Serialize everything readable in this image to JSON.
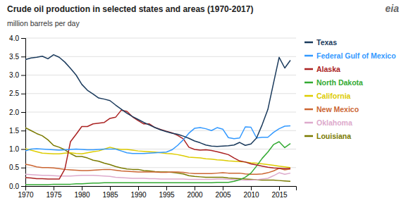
{
  "chart_data": {
    "type": "line",
    "title": "Crude oil production in selected states and areas (1970-2017)",
    "ylabel": "million barrels per day",
    "annotations": [
      {
        "text": "eia"
      }
    ],
    "grid": true,
    "legend": "right",
    "xlim": [
      1970,
      2018
    ],
    "ylim": [
      0,
      4.0
    ],
    "xticks": [
      1970,
      1975,
      1980,
      1985,
      1990,
      1995,
      2000,
      2005,
      2010,
      2015
    ],
    "yticks": [
      {
        "value": 0.0,
        "label": "0.0"
      },
      0.5,
      {
        "value": 1.0,
        "label": "1.0"
      },
      1.5,
      {
        "value": 2.0,
        "label": "2.0"
      },
      2.5,
      {
        "value": 3.0,
        "label": "3.0"
      },
      3.5,
      {
        "value": 4.0,
        "label": "4.0"
      }
    ],
    "x": [
      1970,
      1971,
      1972,
      1973,
      1974,
      1975,
      1976,
      1977,
      1978,
      1979,
      1980,
      1981,
      1982,
      1983,
      1984,
      1985,
      1986,
      1987,
      1988,
      1989,
      1990,
      1991,
      1992,
      1993,
      1994,
      1995,
      1996,
      1997,
      1998,
      1999,
      2000,
      2001,
      2002,
      2003,
      2004,
      2005,
      2006,
      2007,
      2008,
      2009,
      2010,
      2011,
      2012,
      2013,
      2014,
      2015,
      2016,
      2017
    ],
    "series": [
      {
        "name": "Louisiana",
        "color": "#7a7a00",
        "values": [
          1.58,
          1.5,
          1.42,
          1.36,
          1.25,
          1.1,
          1.05,
          0.98,
          0.88,
          0.8,
          0.8,
          0.76,
          0.7,
          0.67,
          0.62,
          0.58,
          0.53,
          0.49,
          0.46,
          0.45,
          0.45,
          0.42,
          0.41,
          0.39,
          0.38,
          0.38,
          0.37,
          0.35,
          0.33,
          0.28,
          0.26,
          0.25,
          0.24,
          0.24,
          0.24,
          0.24,
          0.22,
          0.21,
          0.2,
          0.19,
          0.18,
          0.17,
          0.16,
          0.16,
          0.16,
          0.15,
          0.14,
          0.13
        ]
      },
      {
        "name": "Oklahoma",
        "color": "#ddaacc",
        "values": [
          0.32,
          0.31,
          0.3,
          0.29,
          0.29,
          0.28,
          0.27,
          0.27,
          0.27,
          0.28,
          0.29,
          0.29,
          0.29,
          0.28,
          0.27,
          0.26,
          0.24,
          0.23,
          0.22,
          0.21,
          0.21,
          0.21,
          0.2,
          0.2,
          0.19,
          0.19,
          0.19,
          0.19,
          0.19,
          0.18,
          0.18,
          0.18,
          0.18,
          0.18,
          0.19,
          0.19,
          0.18,
          0.17,
          0.17,
          0.16,
          0.16,
          0.17,
          0.19,
          0.21,
          0.28,
          0.36,
          0.32,
          0.35
        ]
      },
      {
        "name": "New Mexico",
        "color": "#cc6633",
        "values": [
          0.59,
          0.56,
          0.52,
          0.5,
          0.5,
          0.49,
          0.47,
          0.45,
          0.44,
          0.43,
          0.42,
          0.42,
          0.43,
          0.44,
          0.45,
          0.45,
          0.43,
          0.41,
          0.4,
          0.39,
          0.38,
          0.38,
          0.38,
          0.38,
          0.37,
          0.37,
          0.38,
          0.38,
          0.37,
          0.35,
          0.34,
          0.34,
          0.34,
          0.34,
          0.35,
          0.36,
          0.35,
          0.35,
          0.35,
          0.33,
          0.32,
          0.32,
          0.33,
          0.36,
          0.41,
          0.48,
          0.44,
          0.46
        ]
      },
      {
        "name": "California",
        "color": "#ddcc00",
        "values": [
          1.01,
          0.97,
          0.93,
          0.89,
          0.88,
          0.87,
          0.87,
          0.89,
          0.9,
          0.88,
          0.87,
          0.9,
          0.93,
          0.95,
          1.0,
          1.05,
          1.01,
          0.99,
          0.99,
          0.97,
          0.95,
          0.94,
          0.93,
          0.92,
          0.9,
          0.88,
          0.87,
          0.85,
          0.82,
          0.78,
          0.77,
          0.76,
          0.74,
          0.73,
          0.71,
          0.7,
          0.68,
          0.67,
          0.66,
          0.65,
          0.63,
          0.62,
          0.6,
          0.58,
          0.56,
          0.54,
          0.52,
          0.5
        ]
      },
      {
        "name": "North Dakota",
        "color": "#33aa33",
        "values": [
          0.04,
          0.04,
          0.04,
          0.04,
          0.04,
          0.05,
          0.05,
          0.05,
          0.05,
          0.06,
          0.06,
          0.07,
          0.08,
          0.08,
          0.09,
          0.09,
          0.09,
          0.09,
          0.09,
          0.09,
          0.09,
          0.09,
          0.09,
          0.09,
          0.09,
          0.09,
          0.09,
          0.09,
          0.09,
          0.09,
          0.09,
          0.09,
          0.09,
          0.09,
          0.1,
          0.1,
          0.1,
          0.13,
          0.17,
          0.24,
          0.35,
          0.54,
          0.75,
          0.92,
          1.12,
          1.2,
          1.04,
          1.15
        ]
      },
      {
        "name": "Alaska",
        "color": "#aa2222",
        "values": [
          0.23,
          0.22,
          0.2,
          0.2,
          0.19,
          0.19,
          0.19,
          0.46,
          1.2,
          1.4,
          1.61,
          1.61,
          1.68,
          1.7,
          1.72,
          1.83,
          1.86,
          2.05,
          2.02,
          1.87,
          1.77,
          1.68,
          1.68,
          1.58,
          1.53,
          1.48,
          1.44,
          1.37,
          1.28,
          1.05,
          0.99,
          0.97,
          0.98,
          0.96,
          0.93,
          0.89,
          0.85,
          0.76,
          0.68,
          0.65,
          0.6,
          0.57,
          0.54,
          0.51,
          0.49,
          0.48,
          0.47,
          0.48
        ]
      },
      {
        "name": "Federal Gulf of Mexico",
        "color": "#3399ff",
        "values": [
          0.95,
          1.0,
          1.01,
          1.0,
          0.99,
          0.98,
          0.97,
          0.98,
          0.99,
          1.0,
          0.99,
          0.98,
          0.98,
          0.99,
          1.0,
          1.0,
          1.0,
          0.95,
          0.9,
          0.88,
          0.88,
          0.88,
          0.89,
          0.9,
          0.91,
          0.92,
          0.98,
          1.1,
          1.25,
          1.43,
          1.56,
          1.58,
          1.55,
          1.5,
          1.58,
          1.54,
          1.31,
          1.28,
          1.3,
          1.6,
          1.59,
          1.3,
          1.32,
          1.32,
          1.45,
          1.55,
          1.62,
          1.63
        ]
      },
      {
        "name": "Texas",
        "color": "#1a3a5c",
        "values": [
          3.42,
          3.46,
          3.48,
          3.51,
          3.44,
          3.55,
          3.48,
          3.35,
          3.18,
          3.0,
          2.75,
          2.59,
          2.49,
          2.38,
          2.35,
          2.31,
          2.19,
          2.08,
          1.97,
          1.88,
          1.8,
          1.72,
          1.65,
          1.58,
          1.52,
          1.47,
          1.43,
          1.4,
          1.35,
          1.29,
          1.22,
          1.17,
          1.11,
          1.08,
          1.07,
          1.08,
          1.09,
          1.11,
          1.18,
          1.1,
          1.14,
          1.3,
          1.66,
          2.07,
          2.78,
          3.48,
          3.19,
          3.4
        ]
      }
    ]
  }
}
